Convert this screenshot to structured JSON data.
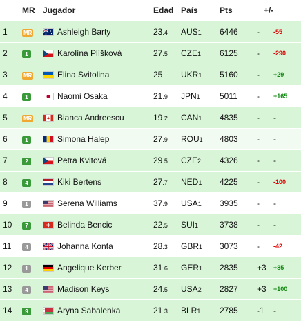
{
  "headers": {
    "rank": "",
    "mr": "MR",
    "name": "Jugador",
    "age": "Edad",
    "country": "País",
    "pts": "Pts",
    "diff": "+/-"
  },
  "rows": [
    {
      "rank": "1",
      "mr": "MR",
      "mr_color": "#f0a830",
      "name": "Ashleigh Barty",
      "age": "23",
      "age_sub": ".4",
      "country": "AUS",
      "country_sub": "1",
      "pts": "6446",
      "move": "-",
      "diff": "-55",
      "diff_type": "neg",
      "flag": "flag-australia-icon",
      "bg": "g"
    },
    {
      "rank": "2",
      "mr": "1",
      "mr_color": "#3a9a3a",
      "name": "Karolína Plíšková",
      "age": "27",
      "age_sub": ".5",
      "country": "CZE",
      "country_sub": "1",
      "pts": "6125",
      "move": "-",
      "diff": "-290",
      "diff_type": "neg",
      "flag": "flag-czech-icon",
      "bg": "g"
    },
    {
      "rank": "3",
      "mr": "MR",
      "mr_color": "#f0a830",
      "name": "Elina Svitolina",
      "age": "25",
      "age_sub": "",
      "country": "UKR",
      "country_sub": "1",
      "pts": "5160",
      "move": "-",
      "diff": "+29",
      "diff_type": "pos",
      "flag": "flag-ukraine-icon",
      "bg": "g"
    },
    {
      "rank": "4",
      "mr": "1",
      "mr_color": "#3a9a3a",
      "name": "Naomi Osaka",
      "age": "21",
      "age_sub": ".9",
      "country": "JPN",
      "country_sub": "1",
      "pts": "5011",
      "move": "-",
      "diff": "+165",
      "diff_type": "pos",
      "flag": "flag-japan-icon",
      "bg": "w"
    },
    {
      "rank": "5",
      "mr": "MR",
      "mr_color": "#f0a830",
      "name": "Bianca Andreescu",
      "age": "19",
      "age_sub": ".2",
      "country": "CAN",
      "country_sub": "1",
      "pts": "4835",
      "move": "-",
      "diff": "-",
      "diff_type": "none",
      "flag": "flag-canada-icon",
      "bg": "g"
    },
    {
      "rank": "6",
      "mr": "1",
      "mr_color": "#3a9a3a",
      "name": "Simona Halep",
      "age": "27",
      "age_sub": ".9",
      "country": "ROU",
      "country_sub": "1",
      "pts": "4803",
      "move": "-",
      "diff": "-",
      "diff_type": "none",
      "flag": "flag-romania-icon",
      "bg": "w2"
    },
    {
      "rank": "7",
      "mr": "2",
      "mr_color": "#3a9a3a",
      "name": "Petra Kvitová",
      "age": "29",
      "age_sub": ".5",
      "country": "CZE",
      "country_sub": "2",
      "pts": "4326",
      "move": "-",
      "diff": "-",
      "diff_type": "none",
      "flag": "flag-czech-icon",
      "bg": "g"
    },
    {
      "rank": "8",
      "mr": "4",
      "mr_color": "#3a9a3a",
      "name": "Kiki Bertens",
      "age": "27",
      "age_sub": ".7",
      "country": "NED",
      "country_sub": "1",
      "pts": "4225",
      "move": "-",
      "diff": "-100",
      "diff_type": "neg",
      "flag": "flag-netherlands-icon",
      "bg": "g"
    },
    {
      "rank": "9",
      "mr": "1",
      "mr_color": "#999999",
      "name": "Serena Williams",
      "age": "37",
      "age_sub": ".9",
      "country": "USA",
      "country_sub": "1",
      "pts": "3935",
      "move": "-",
      "diff": "-",
      "diff_type": "none",
      "flag": "flag-usa-icon",
      "bg": "w"
    },
    {
      "rank": "10",
      "mr": "7",
      "mr_color": "#3a9a3a",
      "name": "Belinda Bencic",
      "age": "22",
      "age_sub": ".5",
      "country": "SUI",
      "country_sub": "1",
      "pts": "3738",
      "move": "-",
      "diff": "-",
      "diff_type": "none",
      "flag": "flag-switzerland-icon",
      "bg": "g"
    },
    {
      "rank": "11",
      "mr": "4",
      "mr_color": "#999999",
      "name": "Johanna Konta",
      "age": "28",
      "age_sub": ".3",
      "country": "GBR",
      "country_sub": "1",
      "pts": "3073",
      "move": "-",
      "diff": "-42",
      "diff_type": "neg",
      "flag": "flag-uk-icon",
      "bg": "w"
    },
    {
      "rank": "12",
      "mr": "1",
      "mr_color": "#999999",
      "name": "Angelique Kerber",
      "age": "31",
      "age_sub": ".6",
      "country": "GER",
      "country_sub": "1",
      "pts": "2835",
      "move": "+3",
      "diff": "+85",
      "diff_type": "pos",
      "flag": "flag-germany-icon",
      "bg": "g"
    },
    {
      "rank": "13",
      "mr": "4",
      "mr_color": "#999999",
      "name": "Madison Keys",
      "age": "24",
      "age_sub": ".5",
      "country": "USA",
      "country_sub": "2",
      "pts": "2827",
      "move": "+3",
      "diff": "+100",
      "diff_type": "pos",
      "flag": "flag-usa-icon",
      "bg": "g"
    },
    {
      "rank": "14",
      "mr": "9",
      "mr_color": "#3a9a3a",
      "name": "Aryna Sabalenka",
      "age": "21",
      "age_sub": ".3",
      "country": "BLR",
      "country_sub": "1",
      "pts": "2785",
      "move": "-1",
      "diff": "-",
      "diff_type": "none",
      "flag": "flag-belarus-icon",
      "bg": "g"
    }
  ]
}
